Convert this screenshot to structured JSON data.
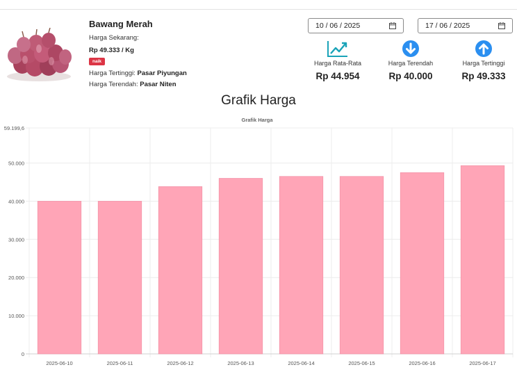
{
  "product": {
    "name": "Bawang Merah",
    "current_label": "Harga Sekarang:",
    "current_price": "Rp 49.333 / Kg",
    "trend_badge": "naik",
    "highest_label": "Harga Tertinggi:",
    "highest_market": "Pasar Piyungan",
    "lowest_label": "Harga Terendah:",
    "lowest_market": "Pasar Niten"
  },
  "date_range": {
    "start": "10 / 06 / 2025",
    "end": "17 / 06 / 2025"
  },
  "stats": [
    {
      "label": "Harga Rata-Rata",
      "value": "Rp 44.954",
      "icon": "trending-up-icon"
    },
    {
      "label": "Harga Terendah",
      "value": "Rp 40.000",
      "icon": "arrow-down-circle-icon"
    },
    {
      "label": "Harga Tertinggi",
      "value": "Rp 49.333",
      "icon": "arrow-up-circle-icon"
    }
  ],
  "colors": {
    "accent": "#2b8ff0",
    "trend": "#1aa3b8",
    "badge": "#dc3545",
    "bar": "#ffa5b7",
    "bar_border": "#f08ca2"
  },
  "section_title": "Grafik Harga",
  "chart_data": {
    "type": "bar",
    "title": "Grafik Harga",
    "xlabel": "",
    "ylabel": "",
    "categories": [
      "2025-06-10",
      "2025-06-11",
      "2025-06-12",
      "2025-06-13",
      "2025-06-14",
      "2025-06-15",
      "2025-06-16",
      "2025-06-17"
    ],
    "values": [
      40000,
      40000,
      43833,
      46000,
      46500,
      46500,
      47500,
      49333
    ],
    "ylim": [
      0,
      59199.6
    ],
    "yticks": [
      0,
      10000,
      20000,
      30000,
      40000,
      50000,
      59199.6
    ],
    "ytick_labels": [
      "0",
      "10.000",
      "20.000",
      "30.000",
      "40.000",
      "50.000",
      "59.199,6"
    ],
    "grid": true,
    "legend": "none"
  }
}
